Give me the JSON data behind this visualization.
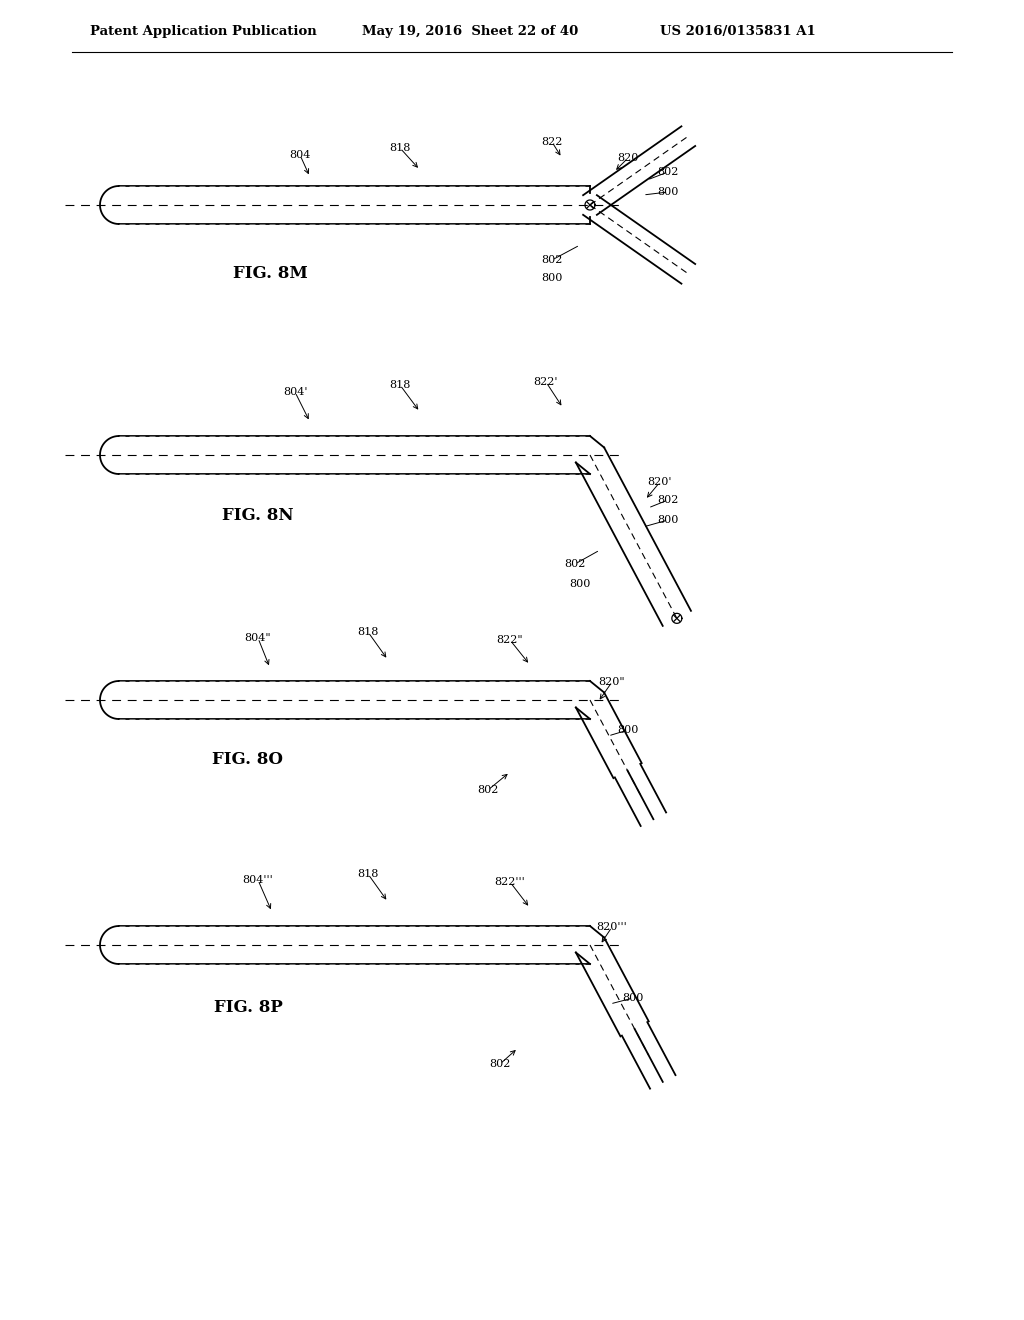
{
  "bg_color": "#ffffff",
  "header_text": "Patent Application Publication",
  "header_date": "May 19, 2016  Sheet 22 of 40",
  "header_patent": "US 2016/0135831 A1",
  "line_color": "#000000",
  "label_color": "#555555",
  "tube_texture_color": "#999999"
}
